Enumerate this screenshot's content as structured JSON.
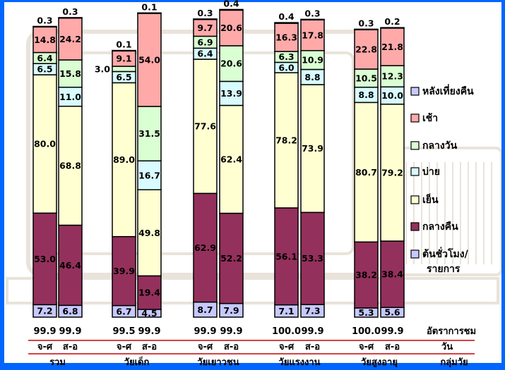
{
  "colors": {
    "background": "#0066ff",
    "plot": "#ffffff",
    "late_night": "#c6c9ff",
    "morning": "#ffa9a9",
    "midday": "#d9ffd2",
    "afternoon": "#d8fbff",
    "evening": "#ffffd2",
    "night": "#94305c",
    "divider": "#cc0000",
    "frame": "#000000"
  },
  "chart_data": {
    "type": "bar",
    "stacked": true,
    "normalized_to": 100,
    "categories": [
      "จ-ศ",
      "ส-อ",
      "จ-ศ",
      "ส-อ",
      "จ-ศ",
      "ส-อ",
      "จ-ศ",
      "ส-อ",
      "จ-ศ",
      "ส-อ"
    ],
    "groups": [
      {
        "label": "รวม",
        "bars": [
          0,
          1
        ]
      },
      {
        "label": "วัยเด็ก",
        "bars": [
          2,
          3
        ]
      },
      {
        "label": "วัยเยาวชน",
        "bars": [
          4,
          5
        ]
      },
      {
        "label": "วัยแรงงาน",
        "bars": [
          6,
          7
        ]
      },
      {
        "label": "วัยสูงอายุ",
        "bars": [
          8,
          9
        ]
      }
    ],
    "series": [
      {
        "name": "ต้นชั่วโมง/",
        "name_line2": "รายการ",
        "color_key": "late_night",
        "values": [
          7.2,
          6.8,
          6.7,
          4.5,
          8.7,
          7.9,
          7.1,
          7.3,
          5.3,
          5.6
        ]
      },
      {
        "name": "กลางคืน",
        "color_key": "night",
        "values": [
          53.0,
          46.4,
          39.9,
          19.4,
          62.9,
          52.2,
          56.1,
          53.3,
          38.2,
          38.4
        ]
      },
      {
        "name": "เย็น",
        "color_key": "evening",
        "values": [
          80.0,
          68.8,
          89.0,
          49.8,
          77.6,
          62.4,
          78.2,
          73.9,
          80.7,
          79.2
        ]
      },
      {
        "name": "บ่าย",
        "color_key": "afternoon",
        "values": [
          6.5,
          11.0,
          6.5,
          16.7,
          6.4,
          13.9,
          6.0,
          8.8,
          8.8,
          10.0
        ]
      },
      {
        "name": "กลางวัน",
        "color_key": "midday",
        "values": [
          6.4,
          15.8,
          3.0,
          31.5,
          6.9,
          20.6,
          6.3,
          10.9,
          10.5,
          12.3
        ]
      },
      {
        "name": "เช้า",
        "color_key": "morning",
        "values": [
          14.8,
          24.2,
          9.1,
          54.0,
          9.7,
          20.6,
          16.3,
          17.8,
          22.8,
          21.8
        ]
      },
      {
        "name": "หลังเที่ยงคืน",
        "color_key": "late_night",
        "values": [
          0.3,
          0.3,
          0.1,
          0.1,
          0.3,
          0.4,
          0.4,
          0.3,
          0.3,
          0.2
        ]
      }
    ],
    "legend_order": [
      "หลังเที่ยงคืน",
      "เช้า",
      "กลางวัน",
      "บ่าย",
      "เย็น",
      "กลางคืน",
      "ต้นชั่วโมง/"
    ],
    "legend_position": "right",
    "rating_row": {
      "label": "อัตราการชม",
      "values": [
        "99.9",
        "99.9",
        "99.5",
        "99.9",
        "99.9",
        "99.9",
        "100.0",
        "99.9",
        "100.0",
        "99.9"
      ]
    },
    "day_row_label": "วัน",
    "group_row_label": "กลุ่มวัย",
    "grid": false
  }
}
